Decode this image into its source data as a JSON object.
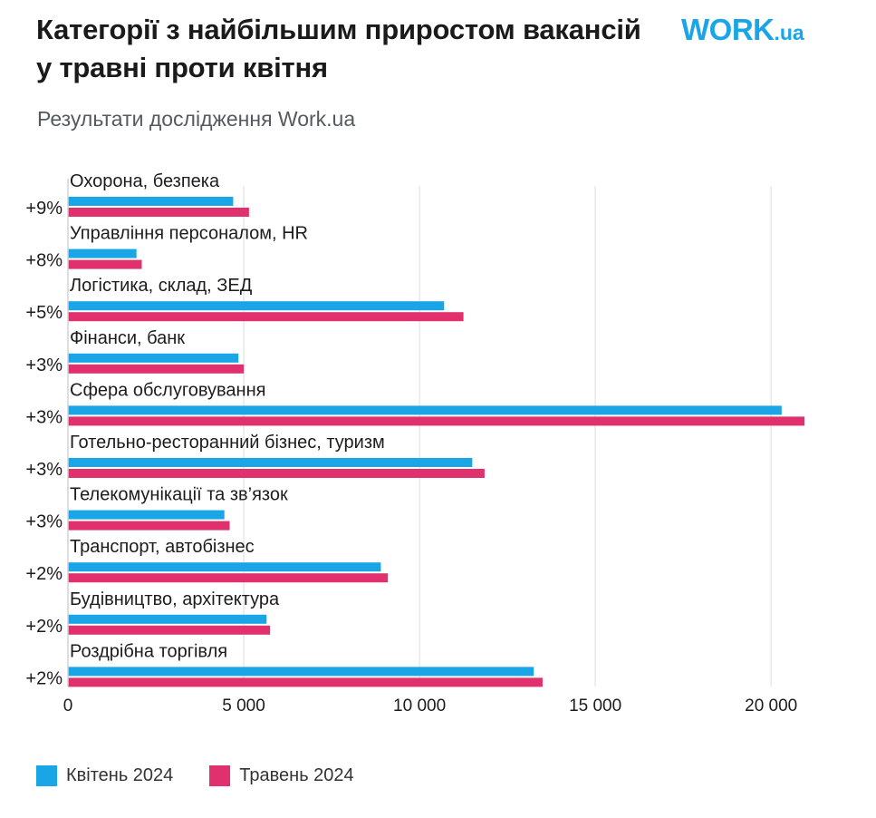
{
  "header": {
    "title": "Категорії з найбільшим приростом вакансій у травні проти квітня",
    "subtitle": "Результати дослідження Work.ua",
    "logo_main": "WORK",
    "logo_tld": ".ua"
  },
  "colors": {
    "april": "#1aa5e6",
    "may": "#e0306e",
    "grid": "#e6e8eb",
    "text": "#1c1c1c",
    "brand": "#1aa5e6"
  },
  "chart_data": {
    "type": "bar",
    "orientation": "horizontal",
    "categories": [
      "Охорона, безпека",
      "Управління персоналом, HR",
      "Логістика, склад, ЗЕД",
      "Фінанси, банк",
      "Сфера обслуговування",
      "Готельно-ресторанний бізнес, туризм",
      "Телекомунікації та зв’язок",
      "Транспорт, автобізнес",
      "Будівництво, архітектура",
      "Роздрібна торгівля"
    ],
    "growth_labels": [
      "+9%",
      "+8%",
      "+5%",
      "+3%",
      "+3%",
      "+3%",
      "+3%",
      "+2%",
      "+2%",
      "+2%"
    ],
    "series": [
      {
        "name": "Квітень 2024",
        "values": [
          4700,
          1950,
          10700,
          4850,
          20300,
          11500,
          4450,
          8900,
          5650,
          13250
        ]
      },
      {
        "name": "Травень 2024",
        "values": [
          5150,
          2100,
          11250,
          5000,
          20950,
          11850,
          4600,
          9100,
          5750,
          13500
        ]
      }
    ],
    "xlim": [
      0,
      21000
    ],
    "xticks": [
      0,
      5000,
      10000,
      15000,
      20000
    ],
    "xtick_labels": [
      "0",
      "5 000",
      "10 000",
      "15 000",
      "20 000"
    ],
    "grid": true,
    "legend_position": "bottom-left"
  }
}
